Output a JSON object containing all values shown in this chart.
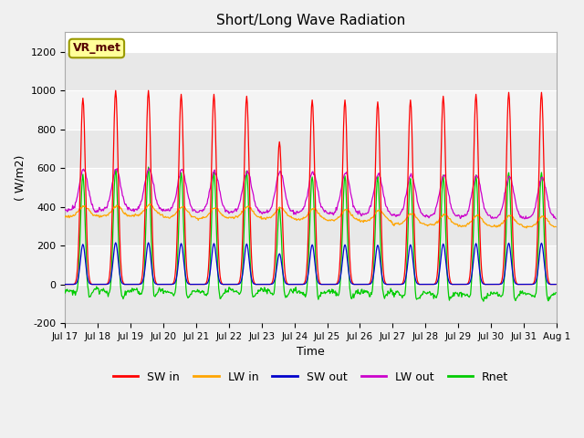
{
  "title": "Short/Long Wave Radiation",
  "ylabel": "( W/m2)",
  "xlabel": "Time",
  "ylim": [
    -200,
    1300
  ],
  "yticks": [
    -200,
    0,
    200,
    400,
    600,
    800,
    1000,
    1200
  ],
  "colors": {
    "SW_in": "#ff0000",
    "LW_in": "#ffa500",
    "SW_out": "#0000cc",
    "LW_out": "#cc00cc",
    "Rnet": "#00cc00"
  },
  "legend_labels": [
    "SW in",
    "LW in",
    "SW out",
    "LW out",
    "Rnet"
  ],
  "fig_bg": "#f0f0f0",
  "plot_bg": "#ffffff",
  "band_colors": [
    "#e8e8e8",
    "#f4f4f4"
  ],
  "annotation_text": "VR_met",
  "annotation_bg": "#ffff99",
  "annotation_border": "#999900",
  "x_tick_labels": [
    "Jul 17",
    "Jul 18",
    "Jul 19",
    "Jul 20",
    "Jul 21",
    "Jul 22",
    "Jul 23",
    "Jul 24",
    "Jul 25",
    "Jul 26",
    "Jul 27",
    "Jul 28",
    "Jul 29",
    "Jul 30",
    "Jul 31",
    "Aug 1"
  ]
}
